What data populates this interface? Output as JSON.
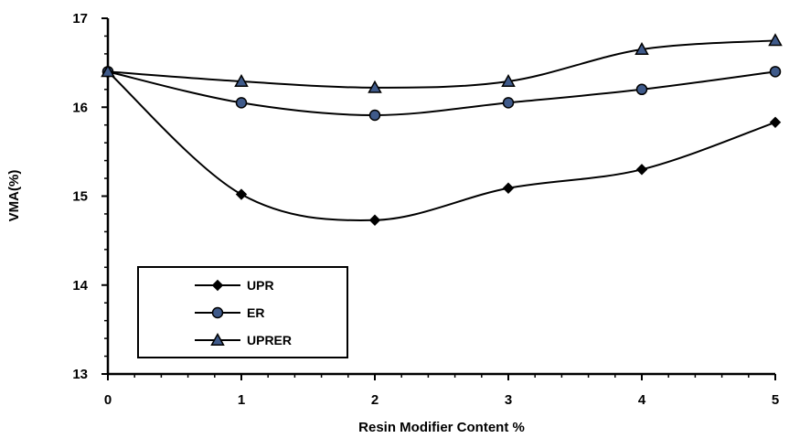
{
  "chart_data": {
    "type": "line",
    "xlabel": "Resin Modifier Content %",
    "ylabel": "VMA(%)",
    "xlim": [
      0,
      5
    ],
    "ylim": [
      13,
      17
    ],
    "x_ticks": [
      0,
      1,
      2,
      3,
      4,
      5
    ],
    "y_ticks": [
      13,
      14,
      15,
      16,
      17
    ],
    "grid": false,
    "legend_position": "bottom-left",
    "smooth": true,
    "x": [
      0,
      1,
      2,
      3,
      4,
      5
    ],
    "series": [
      {
        "name": "UPR",
        "marker": "diamond",
        "values": [
          16.4,
          15.02,
          14.73,
          15.09,
          15.3,
          15.83
        ]
      },
      {
        "name": "ER",
        "marker": "circle",
        "values": [
          16.4,
          16.05,
          15.91,
          16.05,
          16.2,
          16.4
        ]
      },
      {
        "name": "UPRER",
        "marker": "triangle",
        "values": [
          16.4,
          16.29,
          16.22,
          16.29,
          16.65,
          16.75
        ]
      }
    ],
    "colors": {
      "line": "#000000",
      "marker_fill": "#3f5a8a",
      "marker_stroke": "#000000"
    }
  }
}
